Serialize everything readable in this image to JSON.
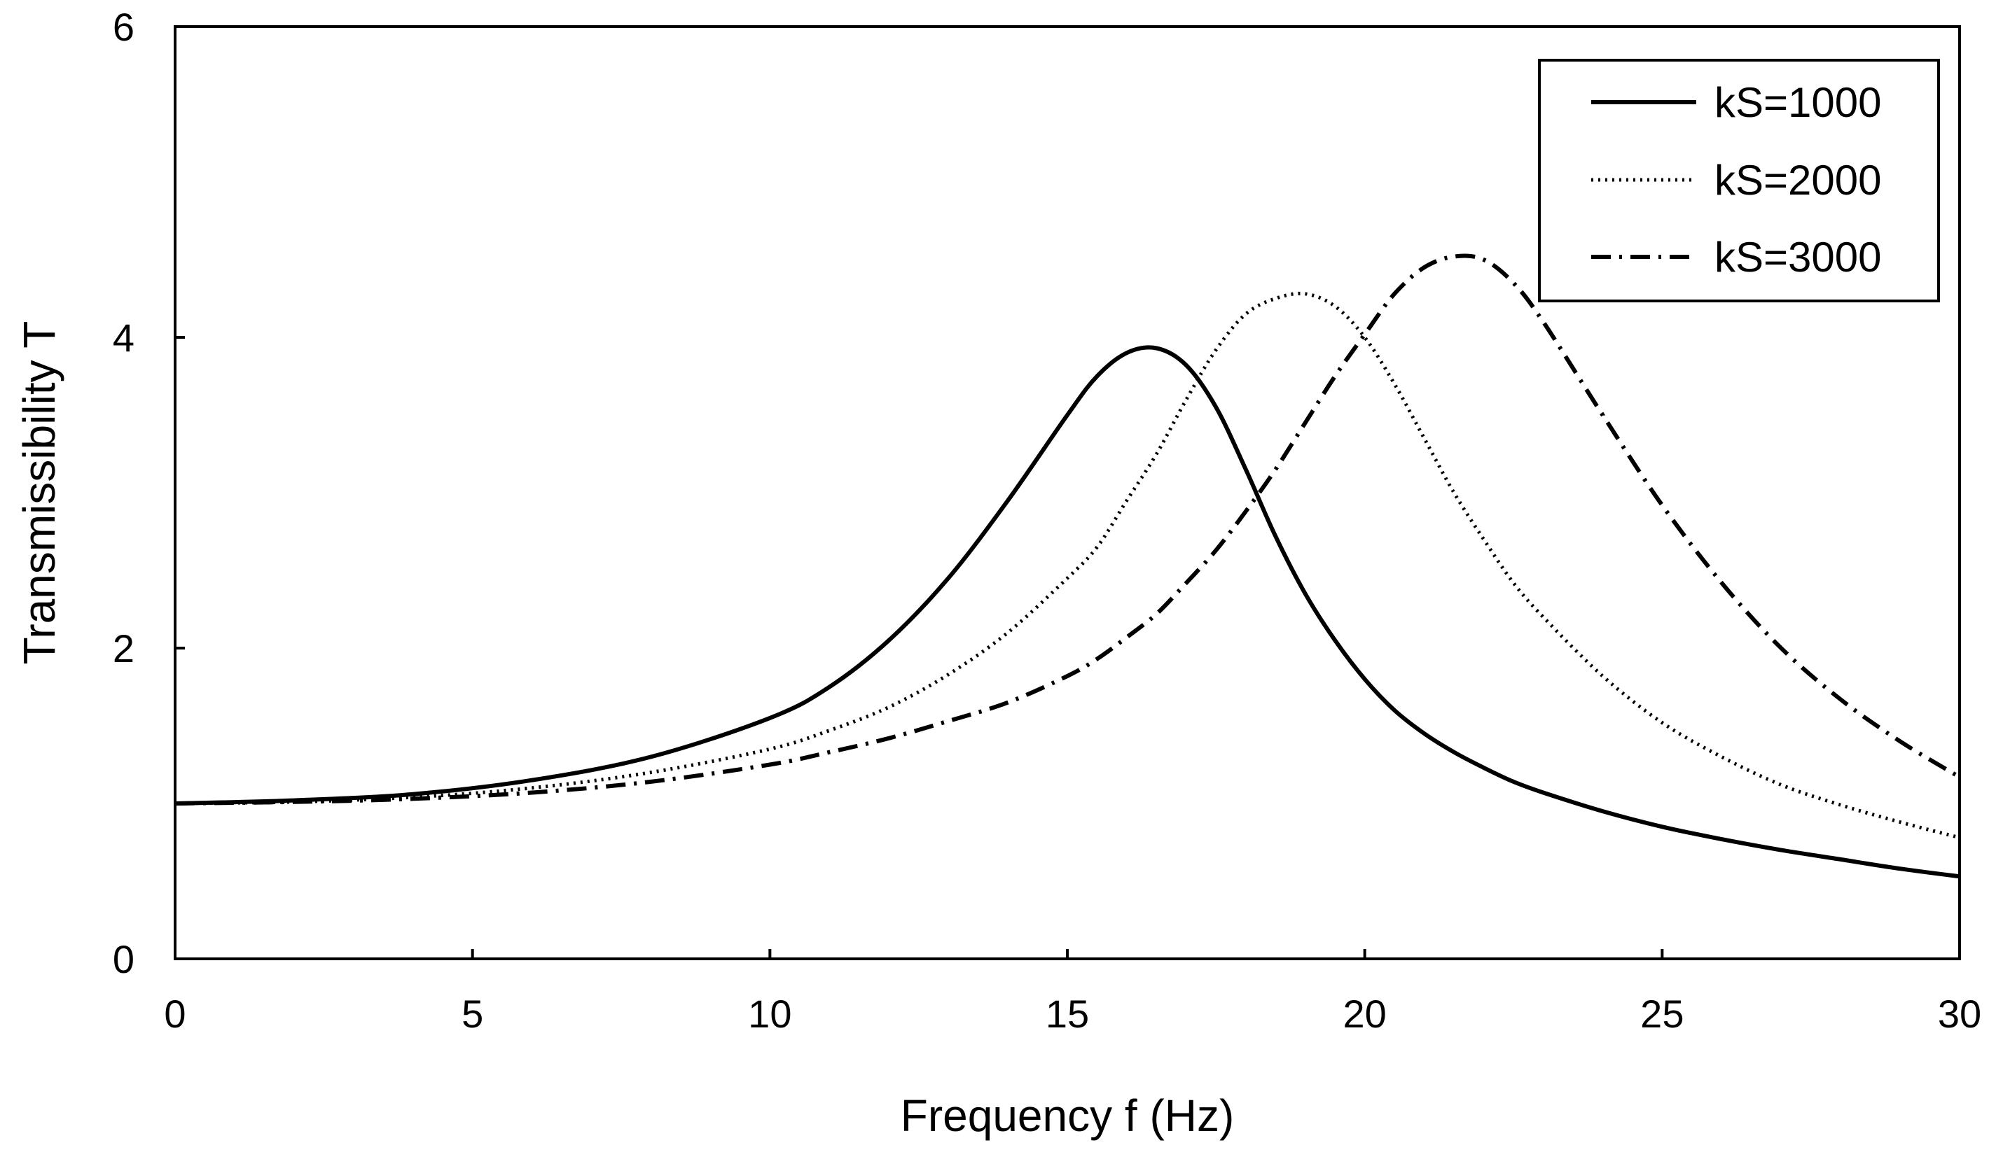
{
  "chart_data": {
    "type": "line",
    "title": "",
    "xlabel": "Frequency f (Hz)",
    "ylabel": "Transmissibility T",
    "xlim": [
      0,
      30
    ],
    "ylim": [
      0,
      6
    ],
    "xticks": [
      "0",
      "5",
      "10",
      "15",
      "20",
      "25",
      "30"
    ],
    "yticks": [
      "0",
      "2",
      "4",
      "6"
    ],
    "grid": false,
    "legend_position": "top-right",
    "x": [
      0,
      2,
      4,
      6,
      8,
      10,
      11,
      12,
      13,
      14,
      15,
      15.5,
      16,
      16.5,
      17,
      17.5,
      18,
      18.5,
      19,
      19.5,
      20,
      20.5,
      21,
      21.5,
      22,
      22.5,
      23,
      24,
      25,
      26,
      27,
      28,
      29,
      30
    ],
    "series": [
      {
        "name": "kS=1000",
        "style": "solid",
        "values": [
          1.0,
          1.02,
          1.06,
          1.15,
          1.3,
          1.55,
          1.75,
          2.05,
          2.45,
          2.95,
          3.5,
          3.75,
          3.9,
          3.93,
          3.82,
          3.55,
          3.15,
          2.72,
          2.35,
          2.05,
          1.8,
          1.6,
          1.45,
          1.33,
          1.23,
          1.14,
          1.07,
          0.95,
          0.85,
          0.77,
          0.7,
          0.64,
          0.58,
          0.53
        ]
      },
      {
        "name": "kS=2000",
        "style": "dotted",
        "values": [
          1.0,
          1.01,
          1.04,
          1.1,
          1.2,
          1.35,
          1.47,
          1.62,
          1.83,
          2.1,
          2.45,
          2.65,
          2.95,
          3.25,
          3.6,
          3.92,
          4.15,
          4.25,
          4.28,
          4.2,
          4.0,
          3.7,
          3.35,
          3.0,
          2.7,
          2.42,
          2.2,
          1.82,
          1.52,
          1.3,
          1.12,
          0.99,
          0.88,
          0.78
        ]
      },
      {
        "name": "kS=3000",
        "style": "dash-dot",
        "values": [
          1.0,
          1.01,
          1.03,
          1.07,
          1.14,
          1.25,
          1.33,
          1.42,
          1.53,
          1.65,
          1.82,
          1.93,
          2.07,
          2.22,
          2.42,
          2.63,
          2.88,
          3.15,
          3.45,
          3.75,
          4.02,
          4.28,
          4.45,
          4.52,
          4.5,
          4.35,
          4.1,
          3.5,
          2.92,
          2.42,
          2.0,
          1.67,
          1.4,
          1.17
        ]
      }
    ]
  }
}
